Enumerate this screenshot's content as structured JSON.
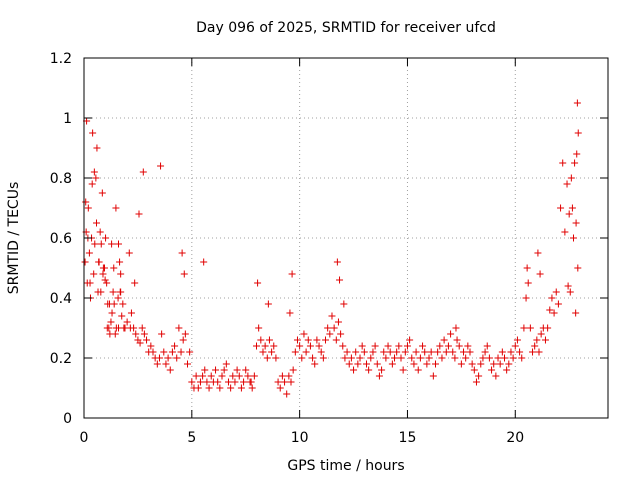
{
  "chart_data": {
    "type": "scatter",
    "title": "Day 096 of 2025, SRMTID for receiver ufcd",
    "xlabel": "GPS time / hours",
    "ylabel": "SRMTID / TECUs",
    "xlim": [
      0,
      24.3
    ],
    "ylim": [
      0,
      1.2
    ],
    "xticks": [
      0,
      5,
      10,
      15,
      20
    ],
    "xtick_labels": [
      "0",
      "5",
      "10",
      "15",
      "20"
    ],
    "yticks": [
      0,
      0.2,
      0.4,
      0.6,
      0.8,
      1,
      1.2
    ],
    "ytick_labels": [
      "0",
      "0.2",
      "0.4",
      "0.6",
      "0.8",
      "1",
      "1.2"
    ],
    "grid": true,
    "marker": "plus",
    "color": "#e00000",
    "series": [
      {
        "name": "SRMTID",
        "x": [
          0.05,
          0.1,
          0.12,
          0.15,
          0.2,
          0.25,
          0.3,
          0.35,
          0.4,
          0.45,
          0.5,
          0.55,
          0.6,
          0.65,
          0.7,
          0.75,
          0.8,
          0.85,
          0.9,
          0.95,
          1.0,
          1.05,
          1.1,
          1.15,
          1.2,
          1.25,
          1.3,
          1.35,
          1.4,
          1.45,
          1.5,
          1.6,
          1.7,
          1.75,
          1.8,
          1.85,
          1.9,
          2.0,
          2.1,
          2.2,
          2.3,
          2.4,
          2.5,
          2.6,
          2.7,
          2.8,
          2.9,
          3.0,
          3.1,
          3.2,
          3.3,
          3.4,
          3.5,
          3.6,
          3.7,
          3.8,
          3.9,
          4.0,
          4.1,
          4.2,
          4.3,
          4.4,
          4.5,
          4.6,
          4.7,
          4.8,
          4.9,
          5.0,
          5.1,
          5.2,
          5.3,
          5.4,
          5.5,
          5.6,
          5.7,
          5.8,
          5.9,
          6.0,
          6.1,
          6.2,
          6.3,
          6.4,
          6.5,
          6.6,
          6.7,
          6.8,
          6.9,
          7.0,
          7.1,
          7.2,
          7.3,
          7.4,
          7.5,
          7.6,
          7.7,
          7.8,
          7.9,
          8.0,
          8.1,
          8.2,
          8.3,
          8.4,
          8.5,
          8.6,
          8.7,
          8.8,
          8.9,
          9.0,
          9.1,
          9.2,
          9.3,
          9.4,
          9.5,
          9.6,
          9.7,
          9.8,
          9.9,
          10.0,
          10.1,
          10.2,
          10.3,
          10.4,
          10.5,
          10.6,
          10.7,
          10.8,
          10.9,
          11.0,
          11.1,
          11.2,
          11.3,
          11.4,
          11.5,
          11.6,
          11.7,
          11.8,
          11.9,
          12.0,
          12.1,
          12.2,
          12.3,
          12.4,
          12.5,
          12.6,
          12.7,
          12.8,
          12.9,
          13.0,
          13.1,
          13.2,
          13.3,
          13.4,
          13.5,
          13.6,
          13.7,
          13.8,
          13.9,
          14.0,
          14.1,
          14.2,
          14.3,
          14.4,
          14.5,
          14.6,
          14.7,
          14.8,
          14.9,
          15.0,
          15.1,
          15.2,
          15.3,
          15.4,
          15.5,
          15.6,
          15.7,
          15.8,
          15.9,
          16.0,
          16.1,
          16.2,
          16.3,
          16.4,
          16.5,
          16.6,
          16.7,
          16.8,
          16.9,
          17.0,
          17.1,
          17.2,
          17.3,
          17.4,
          17.5,
          17.6,
          17.7,
          17.8,
          17.9,
          18.0,
          18.1,
          18.2,
          18.3,
          18.4,
          18.5,
          18.6,
          18.7,
          18.8,
          18.9,
          19.0,
          19.1,
          19.2,
          19.3,
          19.4,
          19.5,
          19.6,
          19.7,
          19.8,
          19.9,
          20.0,
          20.1,
          20.2,
          20.3,
          20.4,
          20.5,
          20.6,
          20.7,
          20.8,
          20.9,
          21.0,
          21.1,
          21.2,
          21.3,
          21.4,
          21.5,
          21.6,
          21.7,
          21.8,
          21.9,
          22.0,
          22.1,
          22.2,
          22.3,
          22.4,
          22.5,
          22.6,
          22.7,
          22.8,
          22.85,
          22.9,
          0.08,
          0.18,
          0.28,
          0.38,
          0.48,
          0.58,
          0.68,
          0.78,
          0.88,
          0.98,
          1.08,
          1.18,
          1.28,
          1.38,
          1.48,
          1.58,
          1.68,
          2.15,
          2.35,
          2.55,
          2.75,
          3.55,
          4.55,
          4.65,
          5.55,
          7.75,
          8.05,
          8.55,
          9.55,
          9.65,
          11.75,
          11.85,
          12.05,
          17.25,
          20.55,
          21.05,
          21.15,
          22.45,
          22.55,
          22.65,
          22.75,
          22.82,
          22.88,
          22.92,
          1.6,
          1.65,
          1.7
        ],
        "y": [
          0.52,
          0.62,
          0.99,
          0.45,
          0.7,
          0.55,
          0.4,
          0.6,
          0.95,
          0.48,
          0.58,
          0.8,
          0.9,
          0.42,
          0.52,
          0.62,
          0.58,
          0.75,
          0.5,
          0.5,
          0.6,
          0.45,
          0.38,
          0.3,
          0.28,
          0.32,
          0.35,
          0.42,
          0.38,
          0.28,
          0.3,
          0.3,
          0.42,
          0.34,
          0.38,
          0.3,
          0.3,
          0.32,
          0.55,
          0.35,
          0.3,
          0.28,
          0.26,
          0.25,
          0.3,
          0.28,
          0.26,
          0.22,
          0.24,
          0.22,
          0.2,
          0.18,
          0.2,
          0.28,
          0.22,
          0.18,
          0.2,
          0.16,
          0.22,
          0.24,
          0.2,
          0.3,
          0.22,
          0.26,
          0.28,
          0.18,
          0.22,
          0.12,
          0.1,
          0.14,
          0.1,
          0.12,
          0.14,
          0.16,
          0.12,
          0.1,
          0.14,
          0.12,
          0.16,
          0.12,
          0.1,
          0.14,
          0.16,
          0.18,
          0.12,
          0.1,
          0.14,
          0.12,
          0.16,
          0.14,
          0.1,
          0.12,
          0.16,
          0.14,
          0.12,
          0.1,
          0.14,
          0.24,
          0.3,
          0.26,
          0.22,
          0.24,
          0.2,
          0.26,
          0.22,
          0.24,
          0.2,
          0.12,
          0.1,
          0.14,
          0.12,
          0.08,
          0.14,
          0.12,
          0.16,
          0.22,
          0.26,
          0.24,
          0.2,
          0.28,
          0.22,
          0.26,
          0.24,
          0.2,
          0.18,
          0.26,
          0.24,
          0.22,
          0.2,
          0.26,
          0.3,
          0.28,
          0.34,
          0.3,
          0.26,
          0.32,
          0.28,
          0.24,
          0.2,
          0.22,
          0.18,
          0.2,
          0.16,
          0.22,
          0.18,
          0.2,
          0.24,
          0.22,
          0.18,
          0.16,
          0.2,
          0.22,
          0.24,
          0.18,
          0.14,
          0.16,
          0.22,
          0.2,
          0.24,
          0.22,
          0.18,
          0.2,
          0.22,
          0.24,
          0.2,
          0.16,
          0.22,
          0.24,
          0.26,
          0.2,
          0.18,
          0.22,
          0.16,
          0.2,
          0.24,
          0.22,
          0.18,
          0.2,
          0.22,
          0.14,
          0.18,
          0.22,
          0.24,
          0.2,
          0.26,
          0.22,
          0.24,
          0.28,
          0.22,
          0.2,
          0.26,
          0.24,
          0.18,
          0.22,
          0.2,
          0.24,
          0.22,
          0.18,
          0.16,
          0.12,
          0.14,
          0.18,
          0.2,
          0.22,
          0.24,
          0.2,
          0.16,
          0.18,
          0.14,
          0.2,
          0.18,
          0.22,
          0.2,
          0.16,
          0.18,
          0.22,
          0.2,
          0.24,
          0.26,
          0.22,
          0.2,
          0.3,
          0.4,
          0.45,
          0.3,
          0.22,
          0.24,
          0.26,
          0.22,
          0.28,
          0.3,
          0.26,
          0.3,
          0.36,
          0.4,
          0.35,
          0.42,
          0.38,
          0.7,
          0.85,
          0.62,
          0.78,
          0.68,
          0.8,
          0.6,
          0.35,
          0.88,
          0.5,
          0.72,
          0.6,
          0.45,
          0.78,
          0.82,
          0.65,
          0.52,
          0.42,
          0.48,
          0.46,
          0.3,
          0.38,
          0.58,
          0.5,
          0.7,
          0.4,
          0.42,
          0.3,
          0.45,
          0.68,
          0.82,
          0.84,
          0.55,
          0.48,
          0.52,
          0.12,
          0.45,
          0.38,
          0.35,
          0.48,
          0.52,
          0.46,
          0.38,
          0.3,
          0.5,
          0.55,
          0.48,
          0.44,
          0.42,
          0.7,
          0.85,
          0.65,
          1.05,
          0.95,
          0.58,
          0.52,
          0.48
        ]
      }
    ]
  }
}
